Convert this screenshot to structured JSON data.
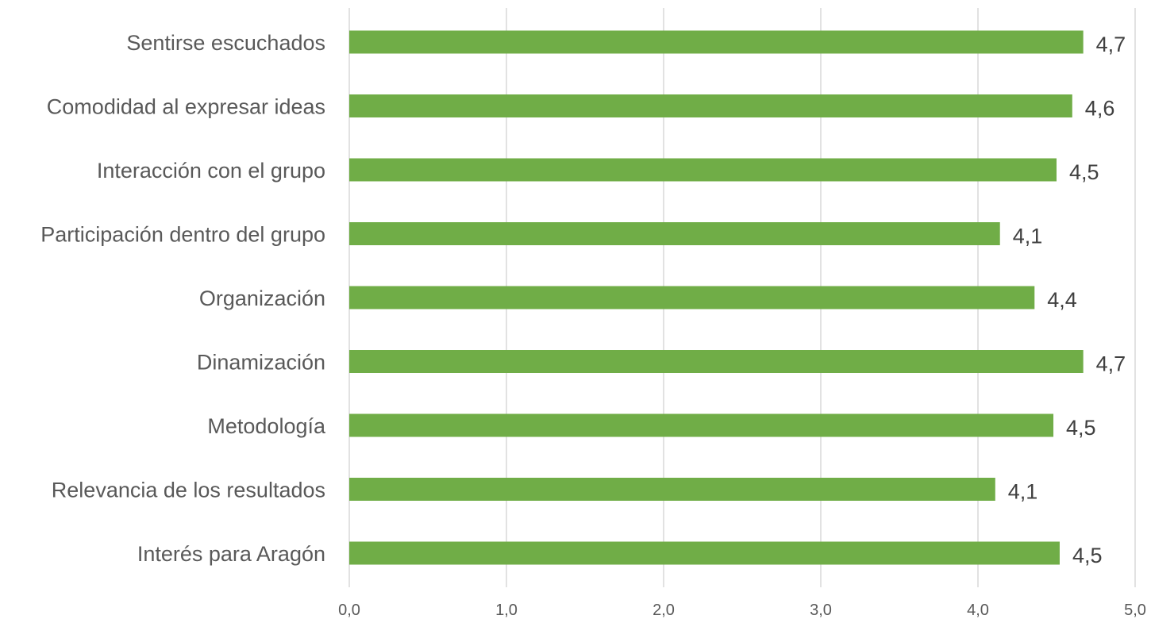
{
  "chart_data": {
    "type": "bar",
    "orientation": "horizontal",
    "categories": [
      "Sentirse escuchados",
      "Comodidad al expresar ideas",
      "Interacción con el grupo",
      "Participación dentro del grupo",
      "Organización",
      "Dinamización",
      "Metodología",
      "Relevancia de los resultados",
      "Interés para Aragón"
    ],
    "values": [
      4.67,
      4.6,
      4.5,
      4.14,
      4.36,
      4.67,
      4.48,
      4.11,
      4.52
    ],
    "value_labels": [
      "4,7",
      "4,6",
      "4,5",
      "4,1",
      "4,4",
      "4,7",
      "4,5",
      "4,1",
      "4,5"
    ],
    "xlim": [
      0,
      5
    ],
    "x_ticks": [
      0,
      1,
      2,
      3,
      4,
      5
    ],
    "x_tick_labels": [
      "0,0",
      "1,0",
      "2,0",
      "3,0",
      "4,0",
      "5,0"
    ],
    "title": "",
    "xlabel": "",
    "ylabel": "",
    "grid": true,
    "legend": "none",
    "bar_color": "#70ad47",
    "grid_color": "#d9d9d9"
  }
}
